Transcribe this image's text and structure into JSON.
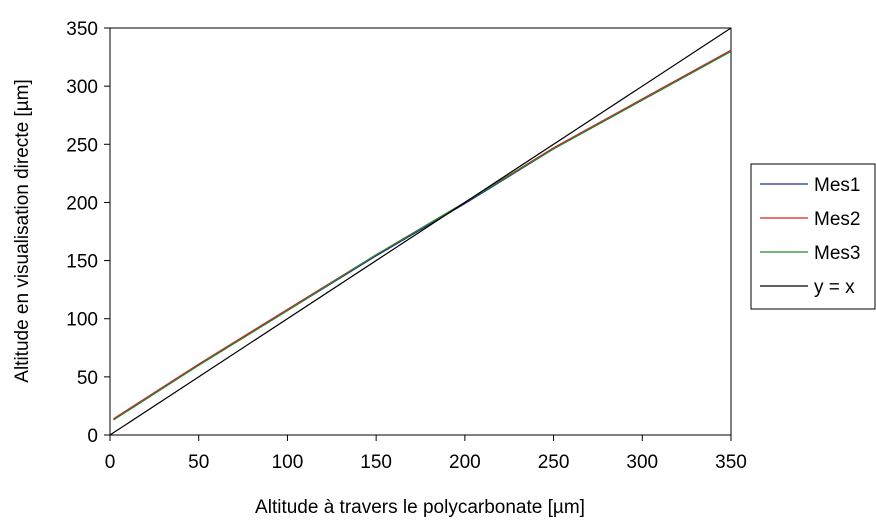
{
  "chart_data": {
    "type": "line",
    "title": "",
    "xlabel": "Altitude à travers le polycarbonate [µm]",
    "ylabel": "Altitude en visualisation directe  [µm]",
    "xlim": [
      0,
      350
    ],
    "ylim": [
      0,
      350
    ],
    "x_ticks": [
      "0",
      "50",
      "100",
      "150",
      "200",
      "250",
      "300",
      "350"
    ],
    "y_ticks": [
      "0",
      "50",
      "100",
      "150",
      "200",
      "250",
      "300",
      "350"
    ],
    "grid": false,
    "legend": "right",
    "series": [
      {
        "name": "Mes1",
        "color": "#1f2a8a",
        "x": [
          2,
          50,
          100,
          150,
          200,
          250,
          300,
          350
        ],
        "y": [
          13,
          60,
          107,
          154,
          199,
          246,
          288,
          330
        ]
      },
      {
        "name": "Mes2",
        "color": "#d62020",
        "x": [
          2,
          50,
          100,
          150,
          200,
          250,
          300,
          350
        ],
        "y": [
          14,
          61,
          108,
          155,
          200,
          247,
          289,
          331
        ]
      },
      {
        "name": "Mes3",
        "color": "#1e8a2e",
        "x": [
          2,
          50,
          100,
          150,
          200,
          250,
          300,
          350
        ],
        "y": [
          13,
          60,
          107,
          155,
          200,
          246,
          288,
          330
        ]
      },
      {
        "name": "y = x",
        "color": "#000000",
        "x": [
          0,
          350
        ],
        "y": [
          0,
          350
        ]
      }
    ]
  }
}
